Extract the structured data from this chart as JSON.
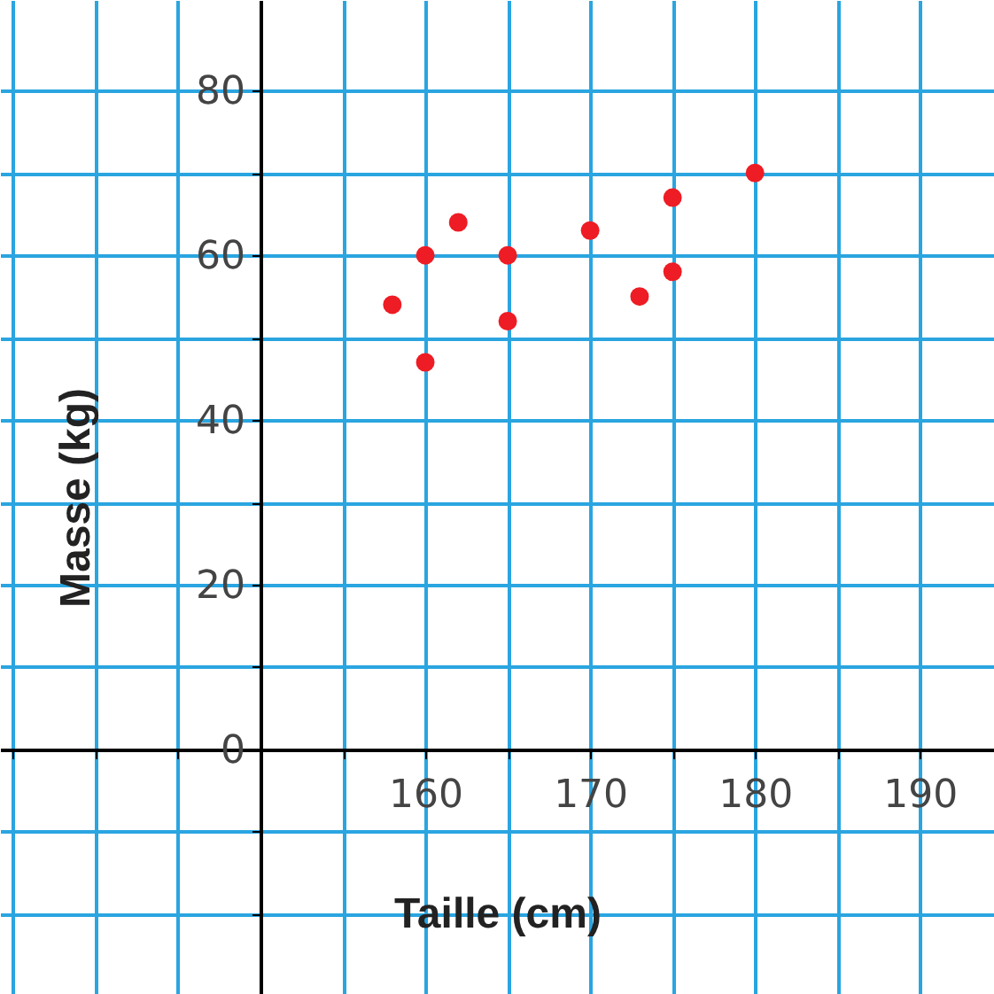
{
  "chart_data": {
    "type": "scatter",
    "xlabel": "Taille (cm)",
    "ylabel": "Masse (kg)",
    "x": [
      158,
      160,
      160,
      162,
      165,
      165,
      170,
      173,
      175,
      175,
      180
    ],
    "series": [
      {
        "color": "#ee1c24",
        "values": [
          54,
          60,
          47,
          64,
          60,
          52,
          63,
          55,
          67,
          58,
          70
        ]
      }
    ],
    "xlim": [
      134.2,
      194.5
    ],
    "ylim": [
      -29.7,
      91
    ],
    "xticks": [
      {
        "value": 135,
        "label": null
      },
      {
        "value": 140,
        "label": null
      },
      {
        "value": 145,
        "label": null
      },
      {
        "value": 150,
        "label": null
      },
      {
        "value": 155,
        "label": null
      },
      160,
      {
        "value": 165,
        "label": null
      },
      170,
      {
        "value": 175,
        "label": null
      },
      180,
      {
        "value": 185,
        "label": null
      },
      190
    ],
    "yticks": [
      {
        "value": -20,
        "label": null
      },
      {
        "value": -10,
        "label": null
      },
      0,
      {
        "value": 10,
        "label": null
      },
      20,
      {
        "value": 30,
        "label": null
      },
      40,
      {
        "value": 50,
        "label": null
      },
      60,
      {
        "value": 70,
        "label": null
      },
      80
    ],
    "grid": true
  }
}
